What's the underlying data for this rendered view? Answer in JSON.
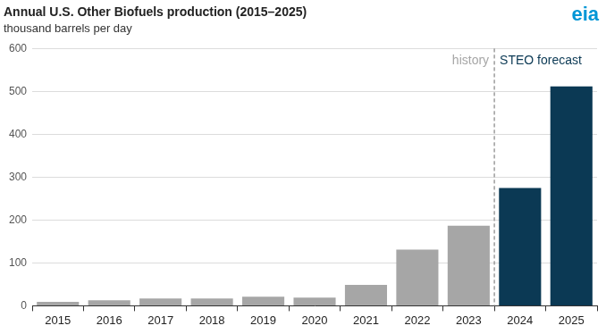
{
  "chart_data": {
    "type": "bar",
    "title": "Annual U.S. Other Biofuels production (2015–2025)",
    "subtitle": "thousand barrels per day",
    "categories": [
      "2015",
      "2016",
      "2017",
      "2018",
      "2019",
      "2020",
      "2021",
      "2022",
      "2023",
      "2024",
      "2025"
    ],
    "values": [
      9,
      13,
      17,
      17,
      21,
      19,
      49,
      131,
      187,
      275,
      512
    ],
    "colors": [
      "#a6a6a6",
      "#a6a6a6",
      "#a6a6a6",
      "#a6a6a6",
      "#a6a6a6",
      "#a6a6a6",
      "#a6a6a6",
      "#a6a6a6",
      "#a6a6a6",
      "#0b3954",
      "#0b3954"
    ],
    "ylim": [
      0,
      600
    ],
    "yticks": [
      0,
      100,
      200,
      300,
      400,
      500,
      600
    ],
    "grid": true,
    "annotations": [
      {
        "text": "history",
        "after": "2023",
        "side": "left"
      },
      {
        "text": "STEO forecast",
        "after": "2023",
        "side": "right"
      }
    ],
    "logo": "eia"
  }
}
